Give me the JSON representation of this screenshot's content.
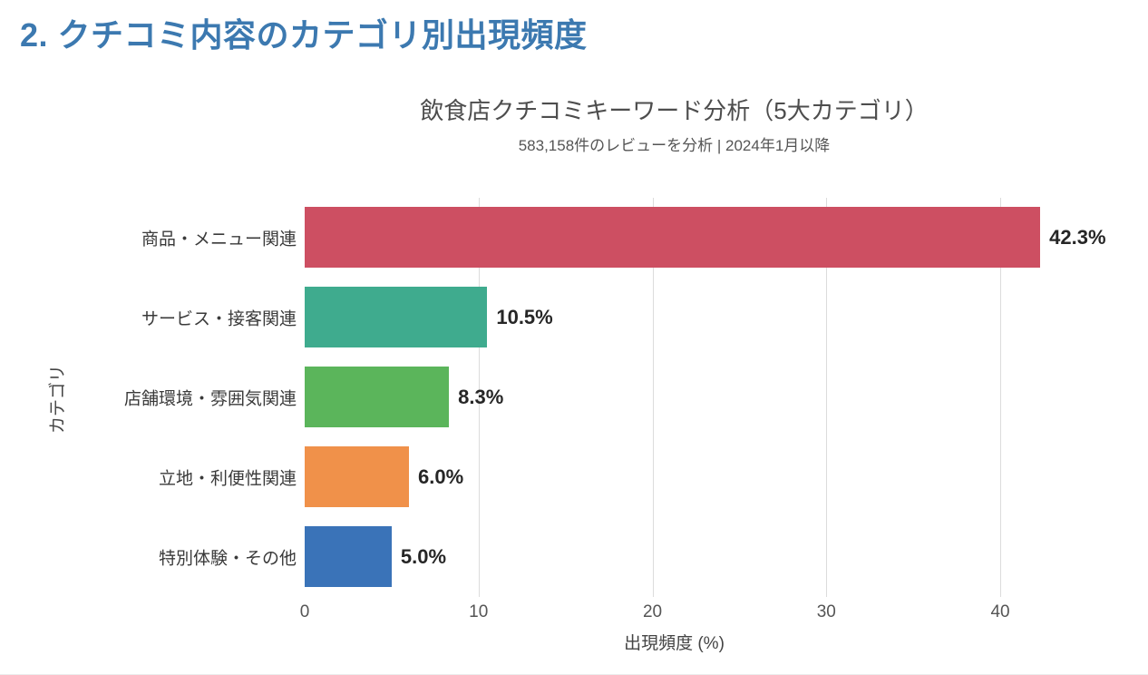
{
  "page": {
    "heading": "2. クチコミ内容のカテゴリ別出現頻度",
    "heading_color": "#3c79b0"
  },
  "chart_data": {
    "type": "bar",
    "orientation": "horizontal",
    "title": "飲食店クチコミキーワード分析（5大カテゴリ）",
    "subtitle": "583,158件のレビューを分析 | 2024年1月以降",
    "categories": [
      "商品・メニュー関連",
      "サービス・接客関連",
      "店舗環境・雰囲気関連",
      "立地・利便性関連",
      "特別体験・その他"
    ],
    "values": [
      42.3,
      10.5,
      8.3,
      6.0,
      5.0
    ],
    "value_labels": [
      "42.3%",
      "10.5%",
      "8.3%",
      "6.0%",
      "5.0%"
    ],
    "bar_colors": [
      "#cd4f62",
      "#3fab8e",
      "#5bb55b",
      "#f0914a",
      "#3a73b8"
    ],
    "xlabel": "出現頻度 (%)",
    "ylabel": "カテゴリ",
    "xticks": [
      0,
      10,
      20,
      30,
      40
    ],
    "xlim": [
      0,
      42.5
    ],
    "grid": true,
    "gridline_color": "#dcdcdc",
    "legend": "none"
  }
}
